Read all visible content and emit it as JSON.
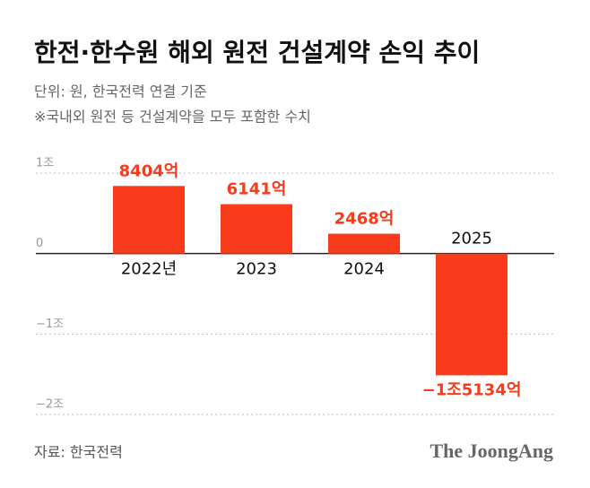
{
  "chart_data": {
    "type": "bar",
    "title": "한전·한수원 해외 원전 건설계약 손익 추이",
    "subtitle": [
      "단위: 원, 한국전력 연결 기준",
      "※국내외 원전 등 건설계약을 모두 포함한 수치"
    ],
    "categories": [
      "2022년",
      "2023",
      "2024",
      "2025"
    ],
    "values": [
      8404,
      6141,
      2468,
      -15134
    ],
    "value_labels": [
      "8404억",
      "6141억",
      "2468억",
      "−1조5134억"
    ],
    "color": "#f73b1b",
    "ylim": [
      -20000,
      10000
    ],
    "yticks": [
      {
        "value": 10000,
        "label": "1조"
      },
      0,
      {
        "value": -10000,
        "label": "−1조"
      },
      {
        "value": -20000,
        "label": "−2조"
      }
    ],
    "grid": true,
    "source": "자료: 한국전력",
    "logo": "The JoongAng"
  }
}
